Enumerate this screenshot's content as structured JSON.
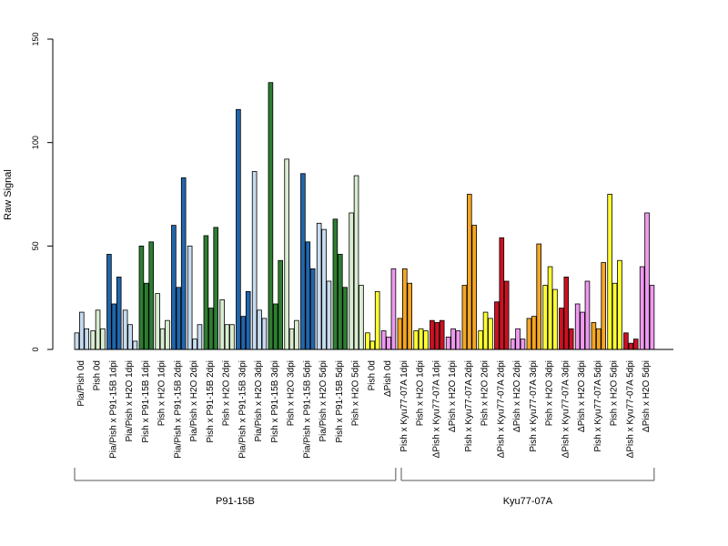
{
  "chart_data": {
    "type": "bar",
    "ylabel": "Raw Signal",
    "ylim": [
      0,
      150
    ],
    "yticks": [
      0,
      50,
      100,
      150
    ],
    "grid": false,
    "colors": {
      "lightblue": "#c6dbef",
      "darkblue": "#2166ac",
      "darkgreen": "#2e7d32",
      "lightgreen": "#d9ecd0",
      "yellow": "#ffff33",
      "violet": "#ee99ee",
      "orange": "#f5a623",
      "red": "#cc1122"
    },
    "groups": [
      {
        "label": "P91-15B",
        "first": 0,
        "last": 19
      },
      {
        "label": "Kyu77-07A",
        "first": 20,
        "last": 35
      }
    ],
    "categories": [
      {
        "label": "Pia/Pish 0d",
        "color": "lightblue",
        "values": [
          8,
          18,
          10
        ]
      },
      {
        "label": "Pish 0d",
        "color": "lightgreen",
        "values": [
          9,
          19,
          10
        ]
      },
      {
        "label": "Pia/Pish x P91-15B 1dpi",
        "color": "darkblue",
        "values": [
          46,
          22,
          35
        ]
      },
      {
        "label": "Pia/Pish x H2O 1dpi",
        "color": "lightblue",
        "values": [
          19,
          12,
          4
        ]
      },
      {
        "label": "Pish x P91-15B 1dpi",
        "color": "darkgreen",
        "values": [
          50,
          32,
          52
        ]
      },
      {
        "label": "Pish x H2O 1dpi",
        "color": "lightgreen",
        "values": [
          27,
          10,
          14
        ]
      },
      {
        "label": "Pia/Pish x P91-15B 2dpi",
        "color": "darkblue",
        "values": [
          60,
          30,
          83
        ]
      },
      {
        "label": "Pia/Pish x H2O 2dpi",
        "color": "lightblue",
        "values": [
          50,
          5,
          12
        ]
      },
      {
        "label": "Pish x P91-15B 2dpi",
        "color": "darkgreen",
        "values": [
          55,
          20,
          59
        ]
      },
      {
        "label": "Pish x H2O 2dpi",
        "color": "lightgreen",
        "values": [
          24,
          12,
          12
        ]
      },
      {
        "label": "Pia/Pish x P91-15B 3dpi",
        "color": "darkblue",
        "values": [
          116,
          16,
          28
        ]
      },
      {
        "label": "Pia/Pish x H2O 3dpi",
        "color": "lightblue",
        "values": [
          86,
          19,
          15
        ]
      },
      {
        "label": "Pish x P91-15B 3dpi",
        "color": "darkgreen",
        "values": [
          129,
          22,
          43
        ]
      },
      {
        "label": "Pish x H2O 3dpi",
        "color": "lightgreen",
        "values": [
          92,
          10,
          14
        ]
      },
      {
        "label": "Pia/Pish x P91-15B 5dpi",
        "color": "darkblue",
        "values": [
          85,
          52,
          39
        ]
      },
      {
        "label": "Pia/Pish x H2O 5dpi",
        "color": "lightblue",
        "values": [
          61,
          58,
          33
        ]
      },
      {
        "label": "Pish x P91-15B 5dpi",
        "color": "darkgreen",
        "values": [
          63,
          46,
          30
        ]
      },
      {
        "label": "Pish x H2O 5dpi",
        "color": "lightgreen",
        "values": [
          66,
          84,
          31
        ]
      },
      {
        "label": "Pish 0d",
        "color": "yellow",
        "values": [
          8,
          4,
          28
        ]
      },
      {
        "label": "ΔPish 0d",
        "color": "violet",
        "values": [
          9,
          6,
          39
        ]
      },
      {
        "label": "Pish x Kyu77-07A 1dpi",
        "color": "orange",
        "values": [
          15,
          39,
          32
        ]
      },
      {
        "label": "Pish x H2O 1dpi",
        "color": "yellow",
        "values": [
          9,
          10,
          9
        ]
      },
      {
        "label": "ΔPish x Kyu77-07A 1dpi",
        "color": "red",
        "values": [
          14,
          13,
          14
        ]
      },
      {
        "label": "ΔPish x H2O 1dpi",
        "color": "violet",
        "values": [
          6,
          10,
          9
        ]
      },
      {
        "label": "Pish x Kyu77-07A 2dpi",
        "color": "orange",
        "values": [
          31,
          75,
          60
        ]
      },
      {
        "label": "Pish x H2O 2dpi",
        "color": "yellow",
        "values": [
          9,
          18,
          15
        ]
      },
      {
        "label": "ΔPish x Kyu77-07A 2dpi",
        "color": "red",
        "values": [
          23,
          54,
          33
        ]
      },
      {
        "label": "ΔPish x H2O 2dpi",
        "color": "violet",
        "values": [
          5,
          10,
          5
        ]
      },
      {
        "label": "Pish x Kyu77-07A 3dpi",
        "color": "orange",
        "values": [
          15,
          16,
          51
        ]
      },
      {
        "label": "Pish x H2O 3dpi",
        "color": "yellow",
        "values": [
          31,
          40,
          29
        ]
      },
      {
        "label": "ΔPish x Kyu77-07A 3dpi",
        "color": "red",
        "values": [
          20,
          35,
          10
        ]
      },
      {
        "label": "ΔPish x H2O 3dpi",
        "color": "violet",
        "values": [
          22,
          18,
          33
        ]
      },
      {
        "label": "Pish x Kyu77-07A 5dpi",
        "color": "orange",
        "values": [
          13,
          10,
          42
        ]
      },
      {
        "label": "Pish x H2O 5dpi",
        "color": "yellow",
        "values": [
          75,
          32,
          43
        ]
      },
      {
        "label": "ΔPish x Kyu77-07A 5dpi",
        "color": "red",
        "values": [
          8,
          3,
          5
        ]
      },
      {
        "label": "ΔPish x H2O 5dpi",
        "color": "violet",
        "values": [
          40,
          66,
          31
        ]
      }
    ]
  }
}
